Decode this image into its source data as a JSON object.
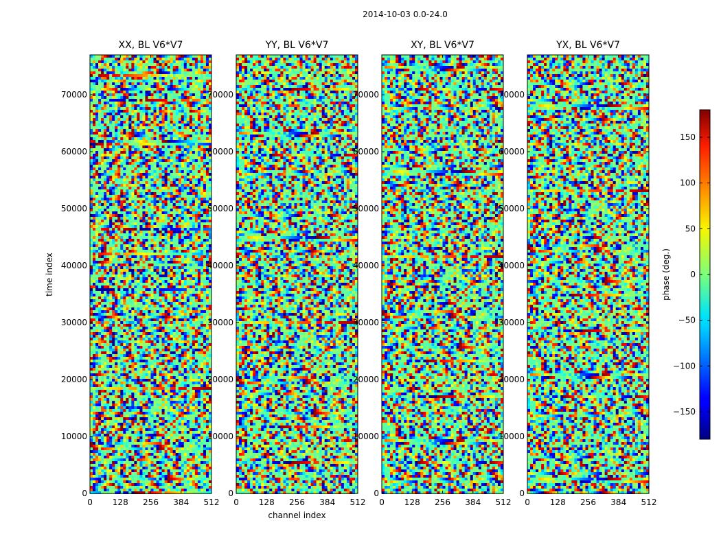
{
  "title": "2014-10-03 0.0-24.0",
  "chart_data": {
    "type": "heatmap",
    "suptitle": "2014-10-03 0.0-24.0",
    "panels": [
      {
        "title": "XX, BL V6*V7",
        "polarization": "XX"
      },
      {
        "title": "YY, BL V6*V7",
        "polarization": "YY"
      },
      {
        "title": "XY, BL V6*V7",
        "polarization": "XY"
      },
      {
        "title": "YX, BL V6*V7",
        "polarization": "YX"
      }
    ],
    "xlabel": "channel index",
    "ylabel": "time index",
    "xlim": [
      0,
      512
    ],
    "ylim": [
      0,
      77000
    ],
    "xticks": [
      0,
      128,
      256,
      384,
      512
    ],
    "yticks": [
      0,
      10000,
      20000,
      30000,
      40000,
      50000,
      60000,
      70000
    ],
    "colorbar": {
      "label": "phase (deg.)",
      "range": [
        -180,
        180
      ],
      "ticks": [
        -150,
        -100,
        -50,
        0,
        50,
        100,
        150
      ],
      "tick_labels": [
        "−150",
        "−100",
        "−50",
        "0",
        "50",
        "100",
        "150"
      ],
      "colormap": "jet"
    }
  }
}
